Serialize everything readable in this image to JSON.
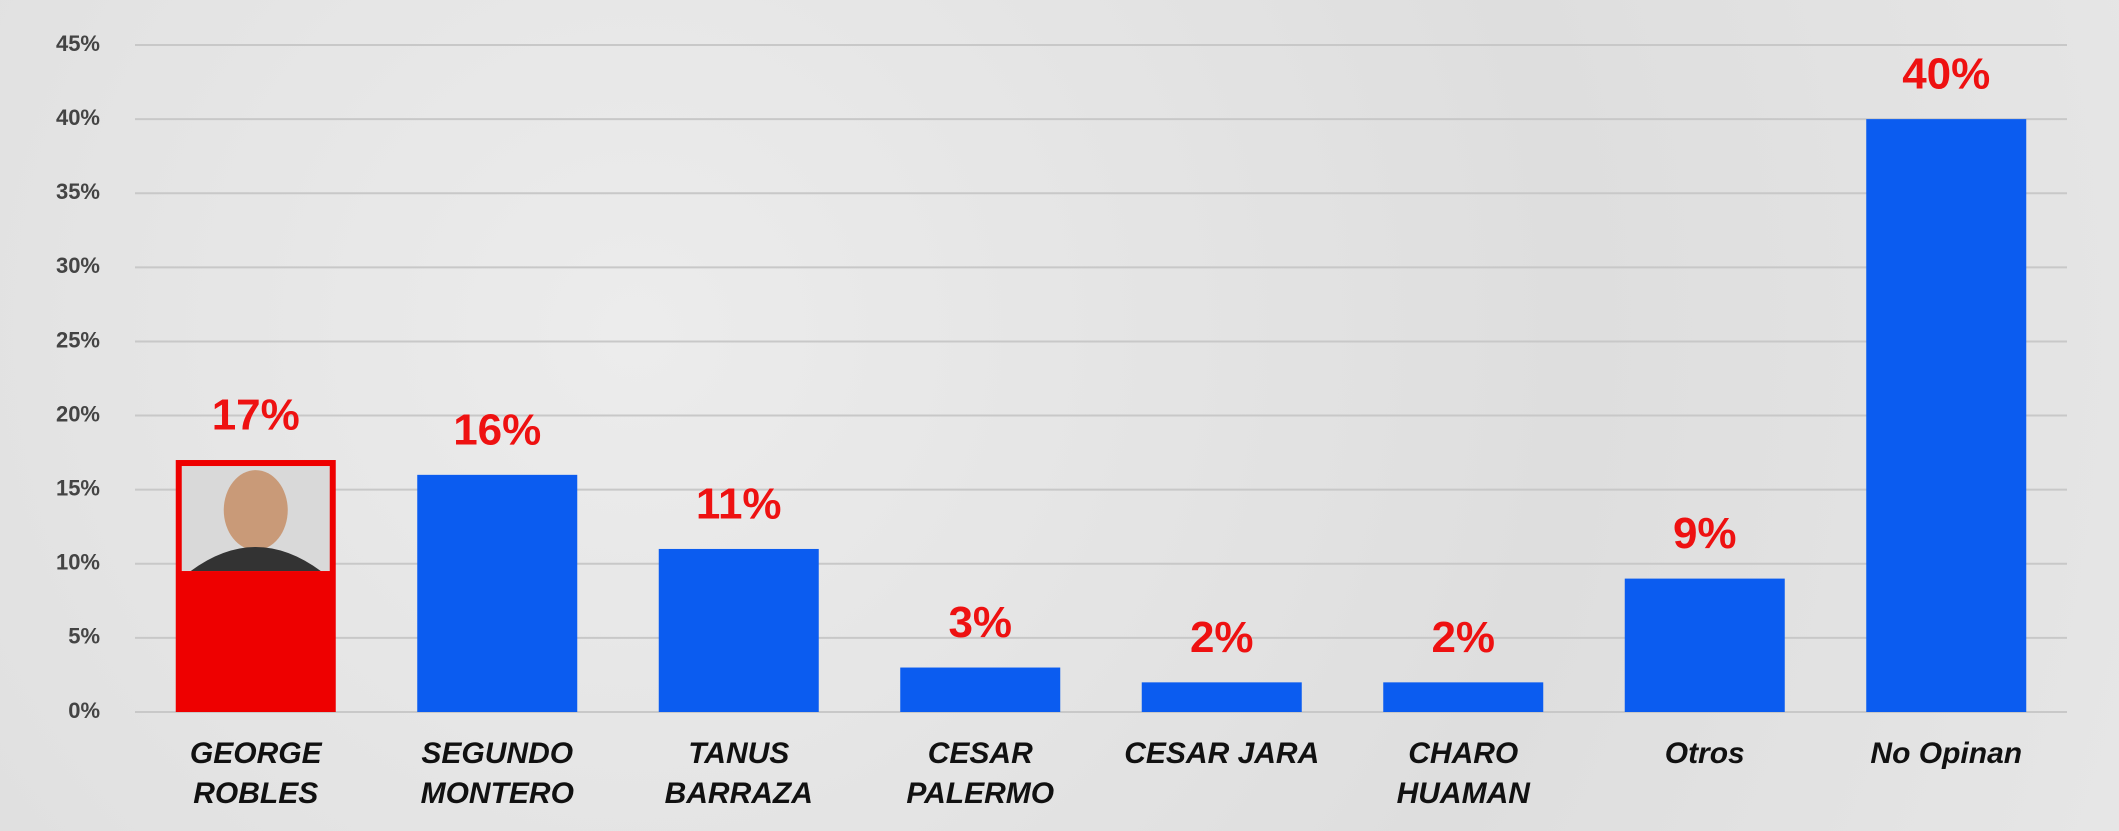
{
  "chart_data": {
    "type": "bar",
    "categories": [
      "GEORGE\nROBLES",
      "SEGUNDO\nMONTERO",
      "TANUS\nBARRAZA",
      "CESAR\nPALERMO",
      "CESAR JARA",
      "CHARO\nHUAMAN",
      "Otros",
      "No Opinan"
    ],
    "values": [
      17,
      16,
      11,
      3,
      2,
      2,
      9,
      40
    ],
    "value_labels": [
      "17%",
      "16%",
      "11%",
      "3%",
      "2%",
      "2%",
      "9%",
      "40%"
    ],
    "colors": [
      "#ee0000",
      "#0b5cf0",
      "#0b5cf0",
      "#0b5cf0",
      "#0b5cf0",
      "#0b5cf0",
      "#0b5cf0",
      "#0b5cf0"
    ],
    "ylim": [
      0,
      45
    ],
    "yticks": [
      {
        "value": 0,
        "label": "0%"
      },
      {
        "value": 5,
        "label": "5%"
      },
      {
        "value": 10,
        "label": "10%"
      },
      {
        "value": 15,
        "label": "15%"
      },
      {
        "value": 20,
        "label": "20%"
      },
      {
        "value": 25,
        "label": "25%"
      },
      {
        "value": 30,
        "label": "30%"
      },
      {
        "value": 35,
        "label": "35%"
      },
      {
        "value": 40,
        "label": "40%"
      },
      {
        "value": 45,
        "label": "45%"
      }
    ],
    "grid": true
  }
}
